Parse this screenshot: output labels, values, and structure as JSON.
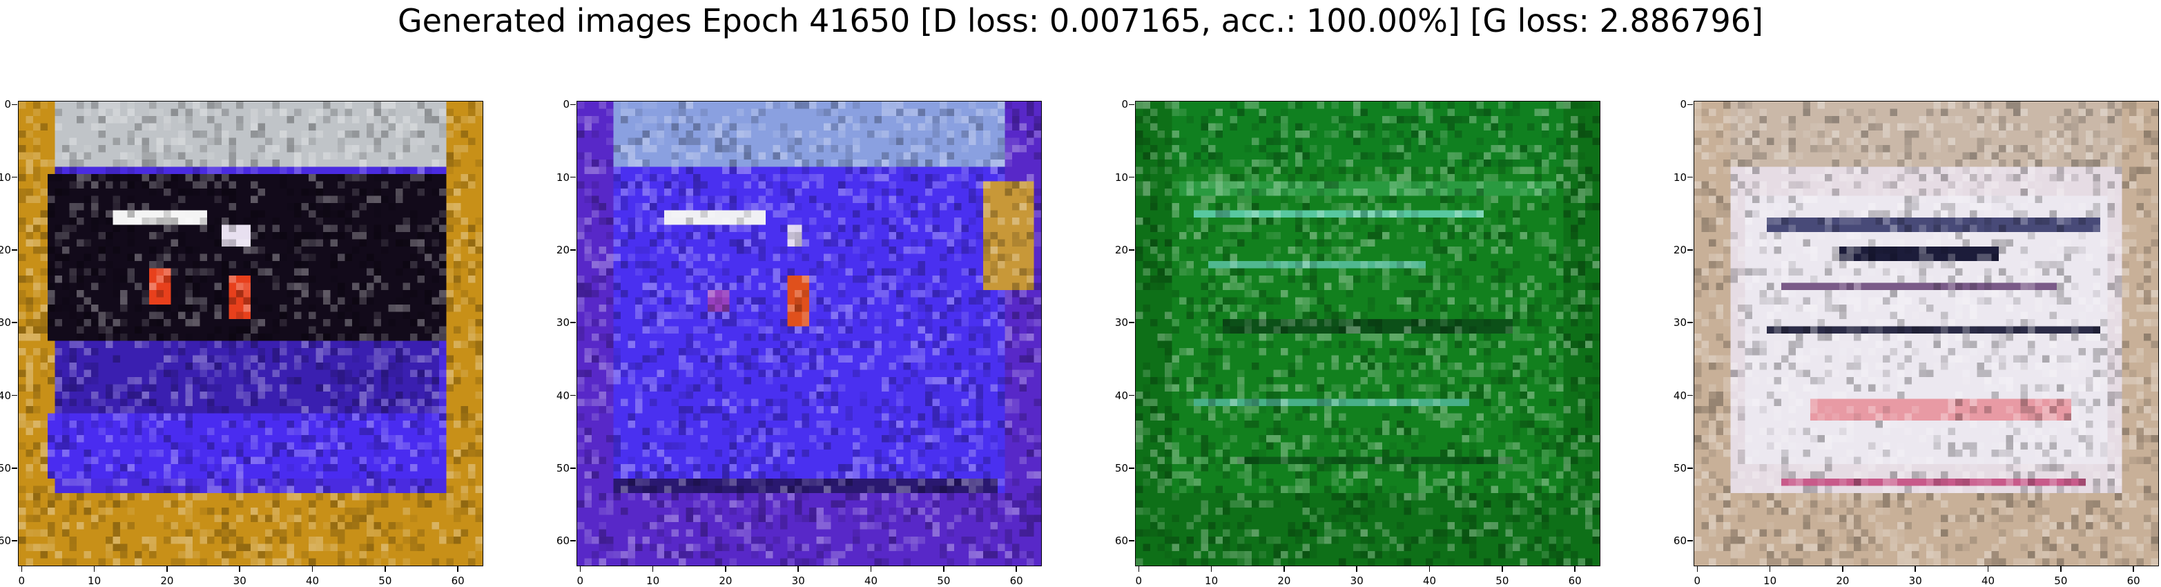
{
  "title": "Generated images Epoch 41650 [D loss: 0.007165, acc.: 100.00%] [G loss: 2.886796]",
  "axes": {
    "extent": [
      -0.5,
      63.5
    ],
    "xticks": [
      0,
      10,
      20,
      30,
      40,
      50,
      60
    ],
    "yticks": [
      0,
      10,
      20,
      30,
      40,
      50,
      60
    ]
  },
  "panels": [
    {
      "name": "generated-image-1",
      "base_color": "#4a2be0",
      "border_color": "#c89018",
      "top_band_color": "#c0c4c8",
      "regions": [
        {
          "x": [
            4,
            59
          ],
          "y": [
            10,
            33
          ],
          "color": "#120a1a"
        },
        {
          "x": [
            5,
            58
          ],
          "y": [
            33,
            43
          ],
          "color": "#3a1fb0"
        },
        {
          "x": [
            4,
            59
          ],
          "y": [
            43,
            52
          ],
          "color": "#4a2cf0"
        },
        {
          "x": [
            13,
            26
          ],
          "y": [
            15,
            17
          ],
          "color": "#f4f4f4"
        },
        {
          "x": [
            28,
            32
          ],
          "y": [
            17,
            20
          ],
          "color": "#e8e0f0"
        },
        {
          "x": [
            18,
            21
          ],
          "y": [
            23,
            28
          ],
          "color": "#e8401c"
        },
        {
          "x": [
            29,
            32
          ],
          "y": [
            24,
            30
          ],
          "color": "#e8401c"
        }
      ]
    },
    {
      "name": "generated-image-2",
      "base_color": "#4a30f0",
      "border_color": "#5828c8",
      "top_band_color": "#8aa0e0",
      "regions": [
        {
          "x": [
            56,
            63
          ],
          "y": [
            11,
            26
          ],
          "color": "#c89838"
        },
        {
          "x": [
            12,
            26
          ],
          "y": [
            15,
            17
          ],
          "color": "#f0f0f4"
        },
        {
          "x": [
            29,
            31
          ],
          "y": [
            17,
            20
          ],
          "color": "#e0d8f0"
        },
        {
          "x": [
            29,
            32
          ],
          "y": [
            24,
            31
          ],
          "color": "#e0501c"
        },
        {
          "x": [
            18,
            21
          ],
          "y": [
            26,
            29
          ],
          "color": "#9840c0"
        },
        {
          "x": [
            5,
            58
          ],
          "y": [
            52,
            54
          ],
          "color": "#2a1870"
        }
      ]
    },
    {
      "name": "generated-image-3",
      "base_color": "#12801e",
      "border_color": "#0e7018",
      "top_band_color": "#108020",
      "regions": [
        {
          "x": [
            6,
            58
          ],
          "y": [
            11,
            13
          ],
          "color": "#2a9a40"
        },
        {
          "x": [
            8,
            48
          ],
          "y": [
            15,
            16
          ],
          "color": "#58c8a0"
        },
        {
          "x": [
            10,
            40
          ],
          "y": [
            22,
            23
          ],
          "color": "#50b890"
        },
        {
          "x": [
            12,
            52
          ],
          "y": [
            30,
            32
          ],
          "color": "#0c5018"
        },
        {
          "x": [
            8,
            46
          ],
          "y": [
            41,
            42
          ],
          "color": "#48b088"
        },
        {
          "x": [
            14,
            52
          ],
          "y": [
            49,
            50
          ],
          "color": "#0c5a18"
        }
      ]
    },
    {
      "name": "generated-image-4",
      "base_color": "#e6dce4",
      "border_color": "#c8b098",
      "top_band_color": "#cab8a8",
      "regions": [
        {
          "x": [
            7,
            57
          ],
          "y": [
            13,
            50
          ],
          "color": "#ece8f0"
        },
        {
          "x": [
            10,
            56
          ],
          "y": [
            16,
            18
          ],
          "color": "#484a78"
        },
        {
          "x": [
            20,
            42
          ],
          "y": [
            20,
            22
          ],
          "color": "#1c1c3a"
        },
        {
          "x": [
            12,
            50
          ],
          "y": [
            25,
            26
          ],
          "color": "#7a5a88"
        },
        {
          "x": [
            10,
            56
          ],
          "y": [
            31,
            32
          ],
          "color": "#2c2c48"
        },
        {
          "x": [
            16,
            52
          ],
          "y": [
            41,
            44
          ],
          "color": "#e89aa4"
        },
        {
          "x": [
            12,
            54
          ],
          "y": [
            52,
            53
          ],
          "color": "#c85a8a"
        }
      ]
    }
  ]
}
